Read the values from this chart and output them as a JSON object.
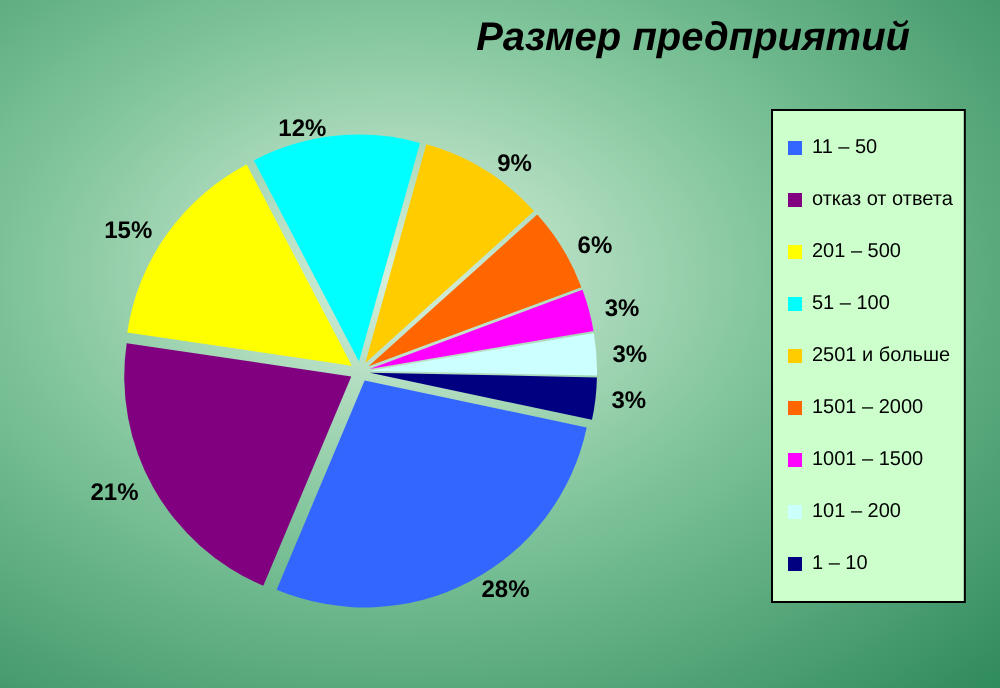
{
  "chart_data": {
    "type": "pie",
    "title": "Размер предприятий",
    "categories": [
      "11 – 50",
      "отказ от ответа",
      "201 – 500",
      "51 – 100",
      "2501 и больше",
      "1501 – 2000",
      "1001 – 1500",
      "101 – 200",
      "1 – 10"
    ],
    "values": [
      28,
      21,
      15,
      12,
      9,
      6,
      3,
      3,
      3
    ],
    "colors": [
      "#3366ff",
      "#800080",
      "#ffff00",
      "#00ffff",
      "#ffcc00",
      "#ff6600",
      "#ff00ff",
      "#ccffff",
      "#000080"
    ],
    "value_labels": [
      "28%",
      "21%",
      "15%",
      "12%",
      "9%",
      "6%",
      "3%",
      "3%",
      "3%"
    ],
    "legend": "right"
  }
}
